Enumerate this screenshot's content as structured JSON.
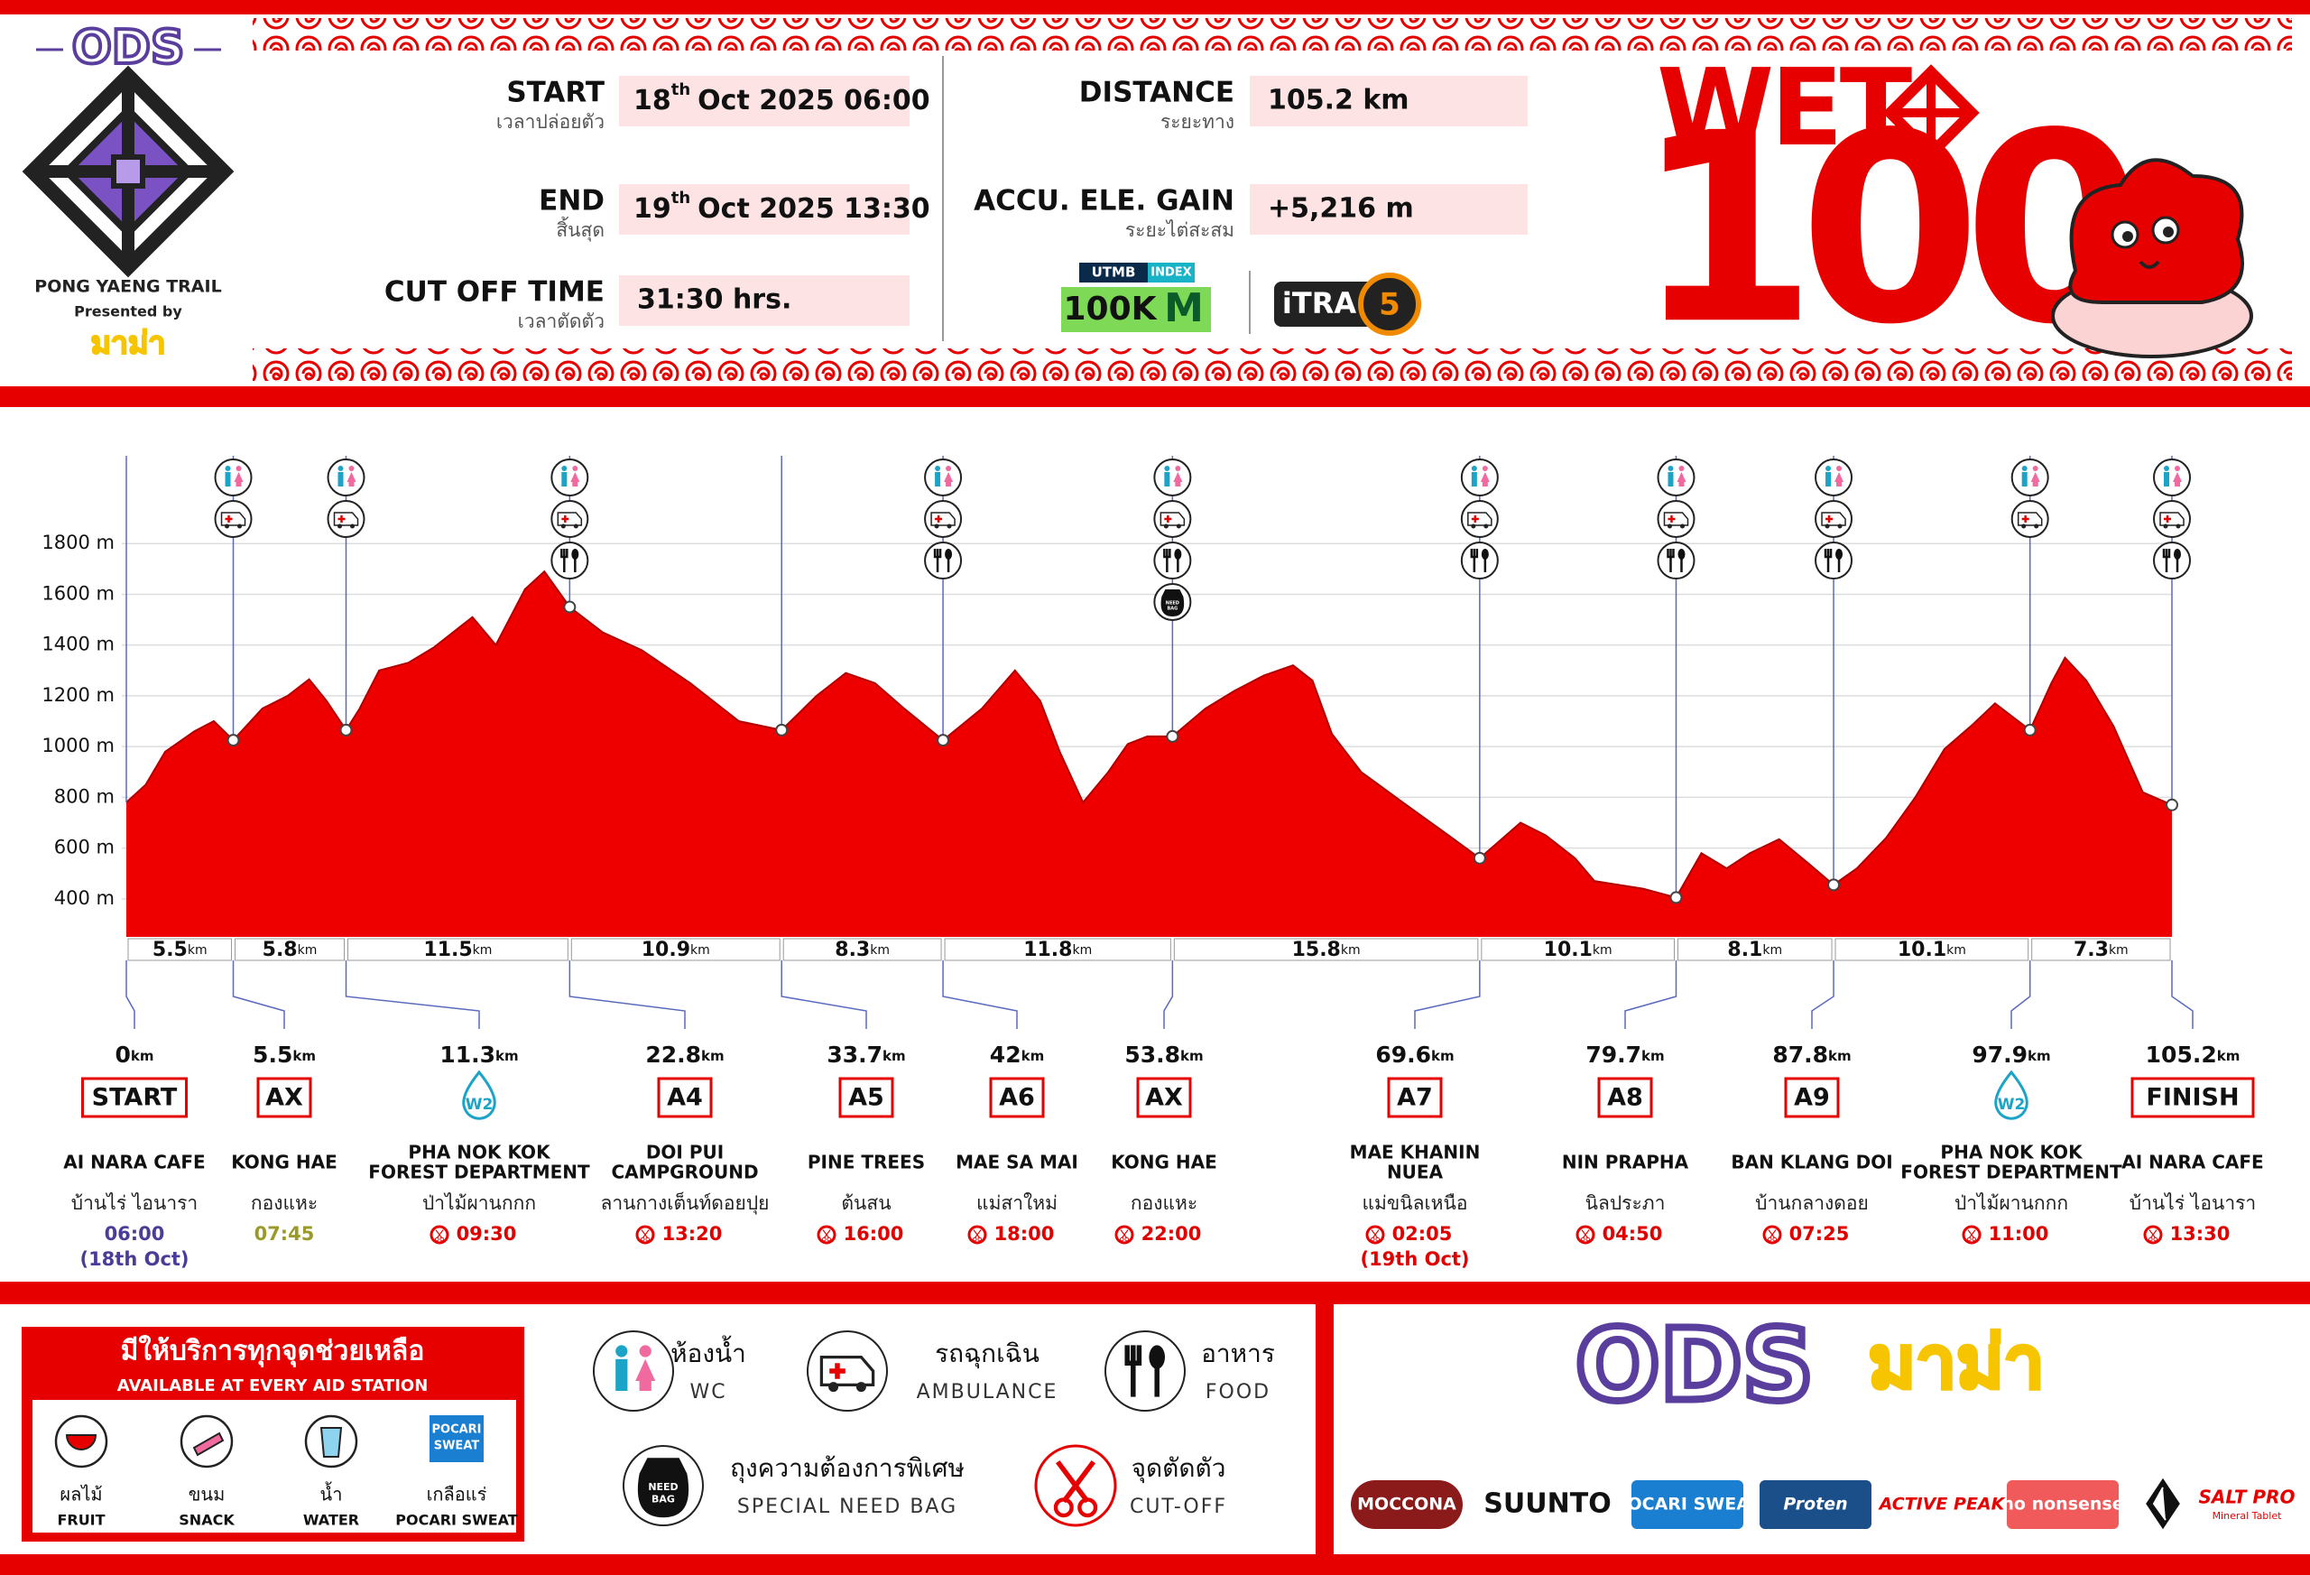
{
  "brand": {
    "logo": "ODS",
    "event": "PONG YAENG TRAIL",
    "presented": "Presented by",
    "sponsor": "มาม่า"
  },
  "title": {
    "word": "WET",
    "number": "100"
  },
  "fields": [
    {
      "label": "START",
      "thai": "เวลาปล่อยตัว",
      "day": "18",
      "sup": "th",
      "rest": "Oct  2025  06:00"
    },
    {
      "label": "END",
      "thai": "สิ้นสุด",
      "day": "19",
      "sup": "th",
      "rest": "Oct  2025  13:30"
    },
    {
      "label": "CUT OFF TIME",
      "thai": "เวลาตัดตัว",
      "value": "31:30 hrs."
    },
    {
      "label": "DISTANCE",
      "thai": "ระยะทาง",
      "value": "105.2 km"
    },
    {
      "label": "ACCU. ELE. GAIN",
      "thai": "ระยะไต่สะสม",
      "value": "+5,216 m"
    }
  ],
  "badges": {
    "utmb": "UTMB",
    "index": "INDEX",
    "category": "100K",
    "m": "M",
    "itra": "iTRA",
    "points": "5"
  },
  "chart_data": {
    "type": "area",
    "color": "#ee0000",
    "x": [
      0,
      1,
      2,
      3.5,
      4.5,
      5.5,
      7,
      8.3,
      9.4,
      10.3,
      11.3,
      12,
      13,
      14.5,
      15.8,
      17.8,
      19,
      20.5,
      21.5,
      22.8,
      24.5,
      26.5,
      29,
      31.5,
      33.7,
      35.5,
      37,
      38.5,
      40,
      42,
      44,
      45.7,
      47,
      48,
      49.2,
      50.5,
      51.5,
      52.5,
      53.8,
      55.5,
      57,
      58.5,
      60,
      61,
      62,
      63.5,
      66,
      68,
      69.6,
      71.7,
      73,
      74.5,
      75.5,
      78,
      79.7,
      81,
      82.3,
      83.5,
      85,
      86.5,
      87.8,
      89,
      90.5,
      92,
      93.5,
      95,
      96.1,
      97.9,
      99,
      99.7,
      100.8,
      102.2,
      103.7,
      105.2
    ],
    "values": [
      780,
      850,
      980,
      1060,
      1100,
      1025,
      1150,
      1200,
      1265,
      1180,
      1065,
      1150,
      1300,
      1330,
      1390,
      1510,
      1400,
      1620,
      1690,
      1550,
      1450,
      1380,
      1250,
      1100,
      1065,
      1200,
      1290,
      1250,
      1150,
      1025,
      1150,
      1300,
      1180,
      980,
      780,
      900,
      1010,
      1040,
      1040,
      1150,
      1220,
      1280,
      1320,
      1260,
      1050,
      900,
      760,
      650,
      560,
      700,
      650,
      560,
      470,
      440,
      405,
      580,
      520,
      580,
      635,
      540,
      455,
      520,
      640,
      800,
      990,
      1090,
      1170,
      1065,
      1250,
      1350,
      1260,
      1080,
      820,
      770
    ],
    "xlim": [
      0,
      105.2
    ],
    "ylim": [
      250,
      2000
    ],
    "yticks": [
      {
        "value": 400,
        "label": "400 m"
      },
      {
        "value": 600,
        "label": "600 m"
      },
      {
        "value": 800,
        "label": "800 m"
      },
      {
        "value": 1000,
        "label": "1000 m"
      },
      {
        "value": 1200,
        "label": "1200 m"
      },
      {
        "value": 1400,
        "label": "1400 m"
      },
      {
        "value": 1600,
        "label": "1600 m"
      },
      {
        "value": 1800,
        "label": "1800 m"
      }
    ],
    "grid": true
  },
  "unit": "km",
  "segments": [
    5.5,
    5.8,
    11.5,
    10.9,
    8.3,
    11.8,
    15.8,
    10.1,
    8.1,
    10.1,
    7.3
  ],
  "stations": [
    {
      "km": 0,
      "code": "START",
      "marker": "box",
      "name": [
        "AI NARA CAFE"
      ],
      "thai": "บ้านไร่ ไอนารา",
      "time": "06:00",
      "time_color": "#4a3d9a",
      "cutoff": false,
      "extra": "(18th Oct)",
      "services": []
    },
    {
      "km": 5.5,
      "code": "AX",
      "marker": "box",
      "name": [
        "KONG HAE"
      ],
      "thai": "กองแหะ",
      "time": "07:45",
      "time_color": "#9a9a2a",
      "cutoff": false,
      "services": [
        "wc",
        "ambulance"
      ]
    },
    {
      "km": 11.3,
      "code": "W2",
      "marker": "drop",
      "name": [
        "PHA NOK KOK",
        "FOREST DEPARTMENT"
      ],
      "thai": "ป่าไม้ผานกกก",
      "time": "09:30",
      "time_color": "#e00000",
      "cutoff": true,
      "services": [
        "wc",
        "ambulance"
      ]
    },
    {
      "km": 22.8,
      "code": "A4",
      "marker": "box",
      "name": [
        "DOI PUI",
        "CAMPGROUND"
      ],
      "thai": "ลานกางเต็นท์ดอยปุย",
      "time": "13:20",
      "time_color": "#e00000",
      "cutoff": true,
      "services": [
        "wc",
        "ambulance",
        "food"
      ]
    },
    {
      "km": 33.7,
      "code": "A5",
      "marker": "box",
      "name": [
        "PINE TREES"
      ],
      "thai": "ต้นสน",
      "time": "16:00",
      "time_color": "#e00000",
      "cutoff": true,
      "services": []
    },
    {
      "km": 42,
      "code": "A6",
      "marker": "box",
      "name": [
        "MAE SA MAI"
      ],
      "thai": "แม่สาใหม่",
      "time": "18:00",
      "time_color": "#e00000",
      "cutoff": true,
      "services": [
        "wc",
        "ambulance",
        "food"
      ]
    },
    {
      "km": 53.8,
      "code": "AX",
      "marker": "box",
      "name": [
        "KONG HAE"
      ],
      "thai": "กองแหะ",
      "time": "22:00",
      "time_color": "#e00000",
      "cutoff": true,
      "services": [
        "wc",
        "ambulance",
        "food",
        "bag"
      ]
    },
    {
      "km": 69.6,
      "code": "A7",
      "marker": "box",
      "name": [
        "MAE KHANIN",
        "NUEA"
      ],
      "thai": "แม่ขนิลเหนือ",
      "time": "02:05",
      "time_color": "#e00000",
      "cutoff": true,
      "extra": "(19th Oct)",
      "services": [
        "wc",
        "ambulance",
        "food"
      ]
    },
    {
      "km": 79.7,
      "code": "A8",
      "marker": "box",
      "name": [
        "NIN PRAPHA"
      ],
      "thai": "นิลประภา",
      "time": "04:50",
      "time_color": "#e00000",
      "cutoff": true,
      "services": [
        "wc",
        "ambulance",
        "food"
      ]
    },
    {
      "km": 87.8,
      "code": "A9",
      "marker": "box",
      "name": [
        "BAN KLANG DOI"
      ],
      "thai": "บ้านกลางดอย",
      "time": "07:25",
      "time_color": "#e00000",
      "cutoff": true,
      "services": [
        "wc",
        "ambulance",
        "food"
      ]
    },
    {
      "km": 97.9,
      "code": "W2",
      "marker": "drop",
      "name": [
        "PHA NOK KOK",
        "FOREST DEPARTMENT"
      ],
      "thai": "ป่าไม้ผานกกก",
      "time": "11:00",
      "time_color": "#e00000",
      "cutoff": true,
      "services": [
        "wc",
        "ambulance"
      ]
    },
    {
      "km": 105.2,
      "code": "FINISH",
      "marker": "box",
      "name": [
        "AI NARA CAFE"
      ],
      "thai": "บ้านไร่ ไอนารา",
      "time": "13:30",
      "time_color": "#e00000",
      "cutoff": true,
      "services": [
        "wc",
        "ambulance",
        "food"
      ]
    }
  ],
  "aid": {
    "title": "มีให้บริการทุกจุดช่วยเหลือ",
    "subtitle": "AVAILABLE AT EVERY AID STATION",
    "items": [
      {
        "thai": "ผลไม้",
        "en": "FRUIT"
      },
      {
        "thai": "ขนม",
        "en": "SNACK"
      },
      {
        "thai": "น้ำ",
        "en": "WATER"
      },
      {
        "thai": "เกลือแร่",
        "en": "POCARI SWEAT",
        "logo": [
          "POCARI",
          "SWEAT"
        ]
      }
    ]
  },
  "legend": {
    "wc": {
      "thai": "ห้องน้ำ",
      "en": "WC"
    },
    "ambulance": {
      "thai": "รถฉุกเฉิน",
      "en": "AMBULANCE"
    },
    "food": {
      "thai": "อาหาร",
      "en": "FOOD"
    },
    "bag": {
      "thai": "ถุงความต้องการพิเศษ",
      "en": "SPECIAL NEED BAG",
      "icon": [
        "NEED",
        "BAG"
      ]
    },
    "cutoff": {
      "thai": "จุดตัดตัว",
      "en": "CUT-OFF"
    }
  },
  "sponsors": {
    "main": [
      "ODS",
      "มาม่า"
    ],
    "logos": [
      "MOCCONA",
      "SUUNTO",
      "POCARI SWEAT",
      "Proten",
      "ACTIVE PEAK",
      "no nonsense",
      "SALT PRO"
    ],
    "salt_sub": "Mineral Tablet"
  }
}
